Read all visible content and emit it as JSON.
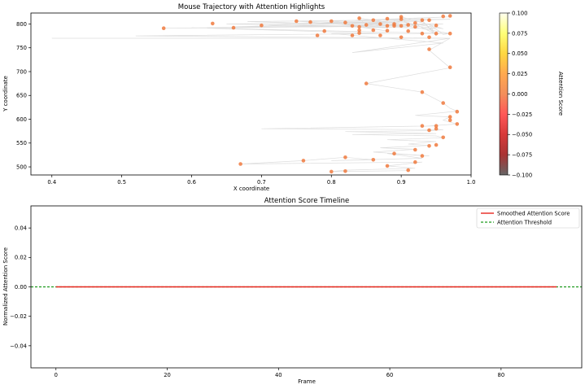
{
  "figure": {
    "background": "#ffffff"
  },
  "chart_data": [
    {
      "type": "scatter",
      "title": "Mouse Trajectory with Attention Highlights",
      "xlabel": "X coordinate",
      "ylabel": "Y coordinate",
      "xlim": [
        0.37,
        1.0
      ],
      "ylim": [
        483,
        823
      ],
      "xticks": [
        0.4,
        0.5,
        0.6,
        0.7,
        0.8,
        0.9,
        1.0
      ],
      "yticks": [
        500,
        550,
        600,
        650,
        700,
        750,
        800
      ],
      "xtick_labels": [
        "0.4",
        "0.5",
        "0.6",
        "0.7",
        "0.8",
        "0.9",
        "1.0"
      ],
      "ytick_labels": [
        "500",
        "550",
        "600",
        "650",
        "700",
        "750",
        "800"
      ],
      "grid": false,
      "line_color": "#dddddd",
      "point_color": "#f07a3e",
      "colorbar": {
        "label": "Attention Score",
        "range": [
          -0.1,
          0.1
        ],
        "ticks": [
          0.1,
          0.075,
          0.05,
          0.025,
          0.0,
          -0.025,
          -0.05,
          -0.075,
          -0.1
        ],
        "tick_labels": [
          "0.100",
          "0.075",
          "0.050",
          "0.025",
          "0.000",
          "−0.025",
          "−0.050",
          "−0.075",
          "−0.100"
        ],
        "colormap": "hot",
        "colors": [
          "#ffffee",
          "#ffff60",
          "#ffd020",
          "#ff9a30",
          "#f07a3e",
          "#ff3a3a",
          "#d01818",
          "#9a1010",
          "#4a4a4a"
        ]
      },
      "trajectory": [
        [
          0.4,
          770
        ],
        [
          0.97,
          770
        ],
        [
          0.52,
          775
        ],
        [
          0.88,
          780
        ],
        [
          0.6,
          792
        ],
        [
          0.97,
          780
        ],
        [
          0.9,
          798
        ],
        [
          0.56,
          791
        ],
        [
          0.86,
          795
        ],
        [
          0.65,
          800
        ],
        [
          0.93,
          805
        ],
        [
          0.66,
          794
        ],
        [
          0.89,
          796
        ],
        [
          0.68,
          805
        ],
        [
          0.97,
          810
        ],
        [
          0.71,
          798
        ],
        [
          0.88,
          792
        ],
        [
          0.75,
          806
        ],
        [
          0.9,
          800
        ],
        [
          0.78,
          802
        ],
        [
          0.97,
          815
        ],
        [
          0.8,
          806
        ],
        [
          0.91,
          794
        ],
        [
          0.82,
          800
        ],
        [
          0.88,
          785
        ],
        [
          0.83,
          796
        ],
        [
          0.95,
          790
        ],
        [
          0.84,
          812
        ],
        [
          0.85,
          798
        ],
        [
          0.87,
          800
        ],
        [
          0.96,
          800
        ],
        [
          0.88,
          796
        ],
        [
          0.89,
          800
        ],
        [
          0.89,
          807
        ],
        [
          0.96,
          790
        ],
        [
          0.9,
          815
        ],
        [
          0.91,
          797
        ],
        [
          0.92,
          800
        ],
        [
          0.95,
          778
        ],
        [
          0.93,
          807
        ],
        [
          0.95,
          775
        ],
        [
          0.94,
          800
        ],
        [
          0.96,
          778
        ],
        [
          0.97,
          780
        ],
        [
          0.8,
          780
        ],
        [
          0.96,
          760
        ],
        [
          0.83,
          740
        ],
        [
          0.97,
          770
        ],
        [
          0.94,
          745
        ],
        [
          0.97,
          708
        ],
        [
          0.85,
          675
        ],
        [
          0.93,
          657
        ],
        [
          0.96,
          634
        ],
        [
          0.97,
          623
        ],
        [
          0.98,
          617
        ],
        [
          0.92,
          608
        ],
        [
          0.97,
          605
        ],
        [
          0.96,
          598
        ],
        [
          0.98,
          590
        ],
        [
          0.93,
          585
        ],
        [
          0.95,
          586
        ],
        [
          0.7,
          580
        ],
        [
          0.96,
          578
        ],
        [
          0.94,
          576
        ],
        [
          0.82,
          574
        ],
        [
          0.95,
          570
        ],
        [
          0.83,
          568
        ],
        [
          0.95,
          565
        ],
        [
          0.96,
          561
        ],
        [
          0.88,
          557
        ],
        [
          0.95,
          553
        ],
        [
          0.91,
          548
        ],
        [
          0.94,
          545
        ],
        [
          0.87,
          540
        ],
        [
          0.92,
          537
        ],
        [
          0.86,
          531
        ],
        [
          0.94,
          523
        ],
        [
          0.88,
          528
        ],
        [
          0.93,
          518
        ],
        [
          0.8,
          513
        ],
        [
          0.86,
          515
        ],
        [
          0.82,
          520
        ],
        [
          0.76,
          513
        ],
        [
          0.67,
          506
        ],
        [
          0.93,
          510
        ],
        [
          0.88,
          502
        ],
        [
          0.92,
          497
        ],
        [
          0.82,
          493
        ],
        [
          0.8,
          490
        ],
        [
          0.91,
          492
        ]
      ],
      "points": [
        [
          0.56,
          791
        ],
        [
          0.63,
          801
        ],
        [
          0.66,
          792
        ],
        [
          0.7,
          797
        ],
        [
          0.75,
          806
        ],
        [
          0.77,
          804
        ],
        [
          0.8,
          806
        ],
        [
          0.82,
          803
        ],
        [
          0.83,
          796
        ],
        [
          0.84,
          794
        ],
        [
          0.85,
          798
        ],
        [
          0.84,
          812
        ],
        [
          0.86,
          808
        ],
        [
          0.88,
          811
        ],
        [
          0.87,
          800
        ],
        [
          0.88,
          796
        ],
        [
          0.89,
          796
        ],
        [
          0.89,
          800
        ],
        [
          0.9,
          796
        ],
        [
          0.9,
          810
        ],
        [
          0.9,
          815
        ],
        [
          0.91,
          798
        ],
        [
          0.92,
          802
        ],
        [
          0.93,
          808
        ],
        [
          0.94,
          808
        ],
        [
          0.92,
          794
        ],
        [
          0.95,
          797
        ],
        [
          0.96,
          816
        ],
        [
          0.97,
          817
        ],
        [
          0.97,
          780
        ],
        [
          0.95,
          780
        ],
        [
          0.93,
          780
        ],
        [
          0.91,
          785
        ],
        [
          0.88,
          786
        ],
        [
          0.86,
          787
        ],
        [
          0.87,
          776
        ],
        [
          0.84,
          781
        ],
        [
          0.84,
          787
        ],
        [
          0.83,
          776
        ],
        [
          0.79,
          785
        ],
        [
          0.78,
          776
        ],
        [
          0.9,
          772
        ],
        [
          0.94,
          772
        ],
        [
          0.94,
          747
        ],
        [
          0.97,
          709
        ],
        [
          0.85,
          675
        ],
        [
          0.93,
          657
        ],
        [
          0.96,
          634
        ],
        [
          0.98,
          616
        ],
        [
          0.97,
          605
        ],
        [
          0.97,
          598
        ],
        [
          0.98,
          590
        ],
        [
          0.93,
          586
        ],
        [
          0.95,
          586
        ],
        [
          0.95,
          580
        ],
        [
          0.94,
          577
        ],
        [
          0.96,
          562
        ],
        [
          0.95,
          546
        ],
        [
          0.94,
          544
        ],
        [
          0.92,
          536
        ],
        [
          0.89,
          528
        ],
        [
          0.93,
          523
        ],
        [
          0.86,
          515
        ],
        [
          0.82,
          520
        ],
        [
          0.76,
          513
        ],
        [
          0.67,
          506
        ],
        [
          0.92,
          510
        ],
        [
          0.88,
          502
        ],
        [
          0.91,
          493
        ],
        [
          0.82,
          491
        ],
        [
          0.8,
          490
        ]
      ]
    },
    {
      "type": "line",
      "title": "Attention Score Timeline",
      "xlabel": "Frame",
      "ylabel": "Normalized Attention Score",
      "xlim": [
        -4.5,
        94.5
      ],
      "ylim": [
        -0.055,
        0.055
      ],
      "xticks": [
        0,
        20,
        40,
        60,
        80
      ],
      "yticks": [
        0.04,
        0.02,
        0.0,
        -0.02,
        -0.04
      ],
      "xtick_labels": [
        "0",
        "20",
        "40",
        "60",
        "80"
      ],
      "ytick_labels": [
        "0.04",
        "0.02",
        "0.00",
        "−0.02",
        "−0.04"
      ],
      "grid": false,
      "legend_position": "top-right",
      "series": [
        {
          "name": "Smoothed Attention Score",
          "color": "#e8261f",
          "style": "solid",
          "x": [
            0,
            90
          ],
          "values": [
            0.0,
            0.0
          ]
        },
        {
          "name": "Attention Threshold",
          "color": "#1f9a1f",
          "style": "dashed",
          "value": 0.0
        }
      ]
    }
  ]
}
